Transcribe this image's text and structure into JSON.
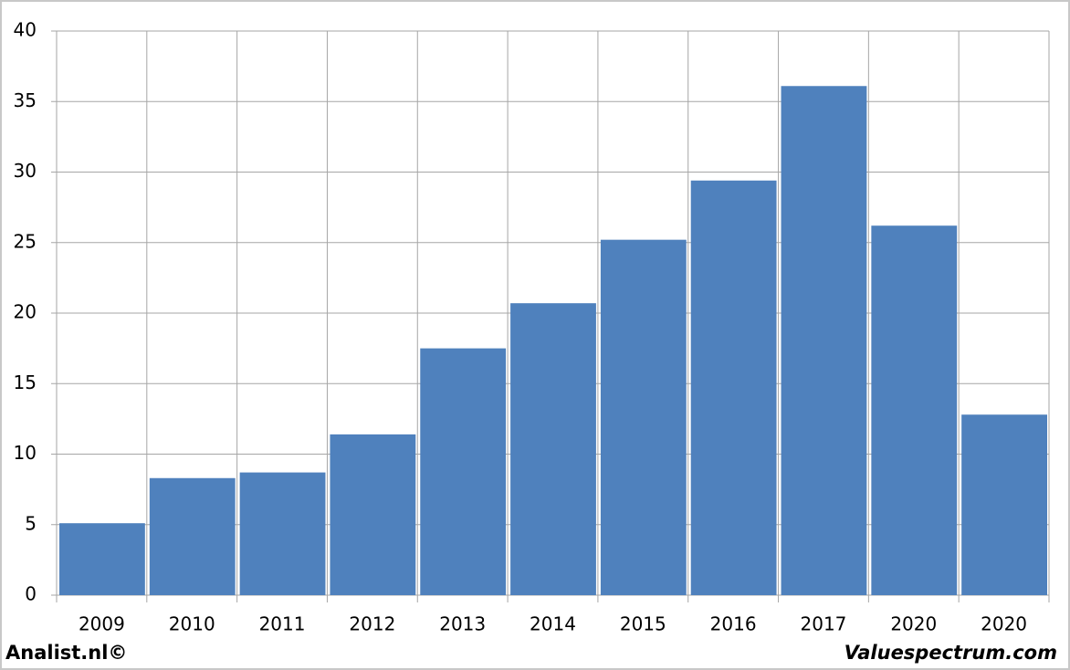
{
  "chart_data": {
    "type": "bar",
    "categories": [
      "2009",
      "2010",
      "2011",
      "2012",
      "2013",
      "2014",
      "2015",
      "2016",
      "2017",
      "2020",
      "2020"
    ],
    "values": [
      5.1,
      8.3,
      8.7,
      11.4,
      17.5,
      20.7,
      25.2,
      29.4,
      36.1,
      26.2,
      12.8
    ],
    "color": "#4f81bd",
    "ylim": [
      0,
      40
    ],
    "yticks": [
      0,
      5,
      10,
      15,
      20,
      25,
      30,
      35,
      40
    ],
    "grid": true,
    "footer_left": "Analist.nl©",
    "footer_right": "Valuespectrum.com"
  }
}
